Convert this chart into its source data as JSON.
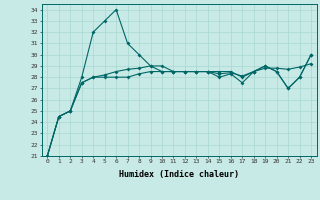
{
  "xlabel": "Humidex (Indice chaleur)",
  "ylabel": "",
  "bg_color": "#c8eae6",
  "grid_color": "#a8d8d0",
  "line_color": "#006666",
  "xlim": [
    -0.5,
    23.5
  ],
  "ylim": [
    21,
    34.5
  ],
  "yticks": [
    21,
    22,
    23,
    24,
    25,
    26,
    27,
    28,
    29,
    30,
    31,
    32,
    33,
    34
  ],
  "xticks": [
    0,
    1,
    2,
    3,
    4,
    5,
    6,
    7,
    8,
    9,
    10,
    11,
    12,
    13,
    14,
    15,
    16,
    17,
    18,
    19,
    20,
    21,
    22,
    23
  ],
  "series": [
    [
      21,
      24.5,
      25.0,
      28.0,
      32.0,
      33.0,
      34.0,
      31.0,
      30.0,
      29.0,
      29.0,
      28.5,
      28.5,
      28.5,
      28.5,
      28.5,
      28.5,
      28.0,
      28.5,
      29.0,
      28.5,
      27.0,
      28.0,
      30.0
    ],
    [
      21,
      24.5,
      25.0,
      27.5,
      28.0,
      28.0,
      28.0,
      28.0,
      28.3,
      28.5,
      28.5,
      28.5,
      28.5,
      28.5,
      28.5,
      28.0,
      28.3,
      27.5,
      28.5,
      29.0,
      28.5,
      27.0,
      28.0,
      30.0
    ],
    [
      21,
      24.5,
      25.0,
      27.5,
      28.0,
      28.2,
      28.5,
      28.7,
      28.8,
      29.0,
      28.5,
      28.5,
      28.5,
      28.5,
      28.5,
      28.3,
      28.4,
      28.1,
      28.5,
      28.8,
      28.8,
      28.7,
      28.9,
      29.2
    ]
  ]
}
